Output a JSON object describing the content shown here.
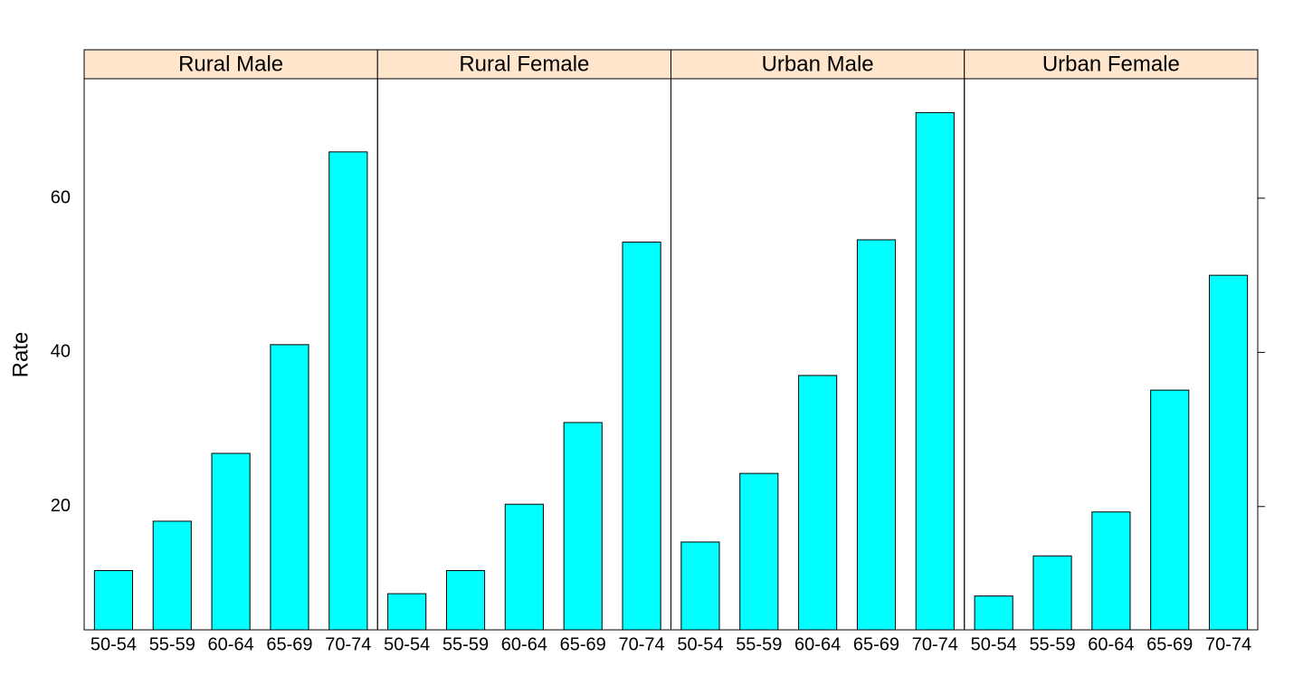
{
  "chart_data": {
    "type": "bar",
    "y_label": "Rate",
    "categories": [
      "50-54",
      "55-59",
      "60-64",
      "65-69",
      "70-74"
    ],
    "series": [
      {
        "name": "Rural Male",
        "color": "#00ffff",
        "values": [
          11.7,
          18.1,
          26.9,
          41.0,
          66.0
        ]
      },
      {
        "name": "Rural Female",
        "color": "#00ffff",
        "values": [
          8.7,
          11.7,
          20.3,
          30.9,
          54.3
        ]
      },
      {
        "name": "Urban Male",
        "color": "#00ffff",
        "values": [
          15.4,
          24.3,
          37.0,
          54.6,
          71.1
        ]
      },
      {
        "name": "Urban Female",
        "color": "#00ffff",
        "values": [
          8.4,
          13.6,
          19.3,
          35.1,
          50.0
        ]
      }
    ],
    "strip_color": "#ffe5cc",
    "ylim": [
      4.01,
      75.49
    ],
    "yticks": [
      20,
      40,
      60
    ]
  }
}
